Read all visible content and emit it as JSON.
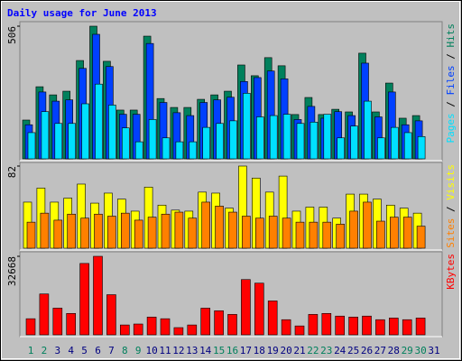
{
  "chart_data": {
    "type": "bar",
    "title": "Daily usage for June 2013",
    "title_color": "#0000ff",
    "categories": [
      "1",
      "2",
      "3",
      "4",
      "5",
      "6",
      "7",
      "8",
      "9",
      "10",
      "11",
      "12",
      "13",
      "14",
      "15",
      "16",
      "17",
      "18",
      "19",
      "20",
      "21",
      "22",
      "23",
      "24",
      "25",
      "26",
      "27",
      "28",
      "29",
      "30",
      "31"
    ],
    "category_colors": [
      "#00805c",
      "#00805c",
      "#000080",
      "#000080",
      "#000080",
      "#000080",
      "#000080",
      "#00805c",
      "#00805c",
      "#000080",
      "#000080",
      "#000080",
      "#000080",
      "#000080",
      "#00805c",
      "#00805c",
      "#000080",
      "#000080",
      "#000080",
      "#000080",
      "#000080",
      "#00805c",
      "#00805c",
      "#000080",
      "#000080",
      "#000080",
      "#000080",
      "#000080",
      "#00805c",
      "#00805c",
      "#000080"
    ],
    "legend_separator": " / ",
    "panels": [
      {
        "ylim": [
          0,
          506
        ],
        "yticks": [
          506
        ],
        "series": [
          {
            "name": "Hits",
            "color": "#00805c",
            "values": [
              148,
              275,
              244,
              258,
              375,
              506,
              372,
              186,
              186,
              468,
              230,
              196,
              196,
              227,
              244,
              258,
              358,
              317,
              386,
              355,
              169,
              234,
              169,
              189,
              179,
              403,
              179,
              289,
              155,
              165,
              null
            ]
          },
          {
            "name": "Files",
            "color": "#0040ff",
            "values": [
              130,
              255,
              220,
              225,
              345,
              475,
              352,
              170,
              170,
              440,
              215,
              176,
              165,
              215,
              225,
              235,
              295,
              310,
              335,
              305,
              150,
              200,
              155,
              180,
              165,
              365,
              160,
              255,
              130,
              145,
              null
            ]
          },
          {
            "name": "Pages",
            "color": "#00e0ff",
            "values": [
              100,
              180,
              135,
              135,
              210,
              285,
              205,
              118,
              65,
              150,
              80,
              65,
              65,
              120,
              135,
              145,
              250,
              160,
              165,
              170,
              135,
              140,
              170,
              80,
              125,
              220,
              80,
              120,
              100,
              85,
              null
            ]
          }
        ]
      },
      {
        "ylim": [
          0,
          82
        ],
        "yticks": [
          82
        ],
        "series": [
          {
            "name": "Visits",
            "color": "#ffff00",
            "values": [
              46,
              60,
              46,
              50,
              64,
              45,
              55,
              49,
              37,
              61,
              43,
              38,
              37,
              56,
              55,
              40,
              82,
              70,
              56,
              72,
              37,
              41,
              41,
              30,
              54,
              54,
              49,
              43,
              40,
              35,
              null
            ]
          },
          {
            "name": "Sites",
            "color": "#ff8000",
            "values": [
              26,
              35,
              28,
              34,
              30,
              34,
              32,
              35,
              28,
              31,
              34,
              36,
              30,
              46,
              42,
              36,
              32,
              30,
              32,
              30,
              26,
              26,
              26,
              24,
              37,
              46,
              27,
              31,
              31,
              22,
              null
            ]
          }
        ]
      },
      {
        "ylim": [
          0,
          32668
        ],
        "yticks": [
          32668
        ],
        "series": [
          {
            "name": "KBytes",
            "color": "#ff0000",
            "values": [
              6700,
              17000,
              11100,
              8900,
              29700,
              32668,
              16700,
              4100,
              4500,
              7400,
              6700,
              3000,
              4100,
              11100,
              10000,
              8500,
              23000,
              21500,
              14100,
              6300,
              3700,
              8500,
              8900,
              7800,
              7400,
              7800,
              6300,
              7000,
              6300,
              7000,
              null
            ]
          }
        ]
      }
    ]
  }
}
